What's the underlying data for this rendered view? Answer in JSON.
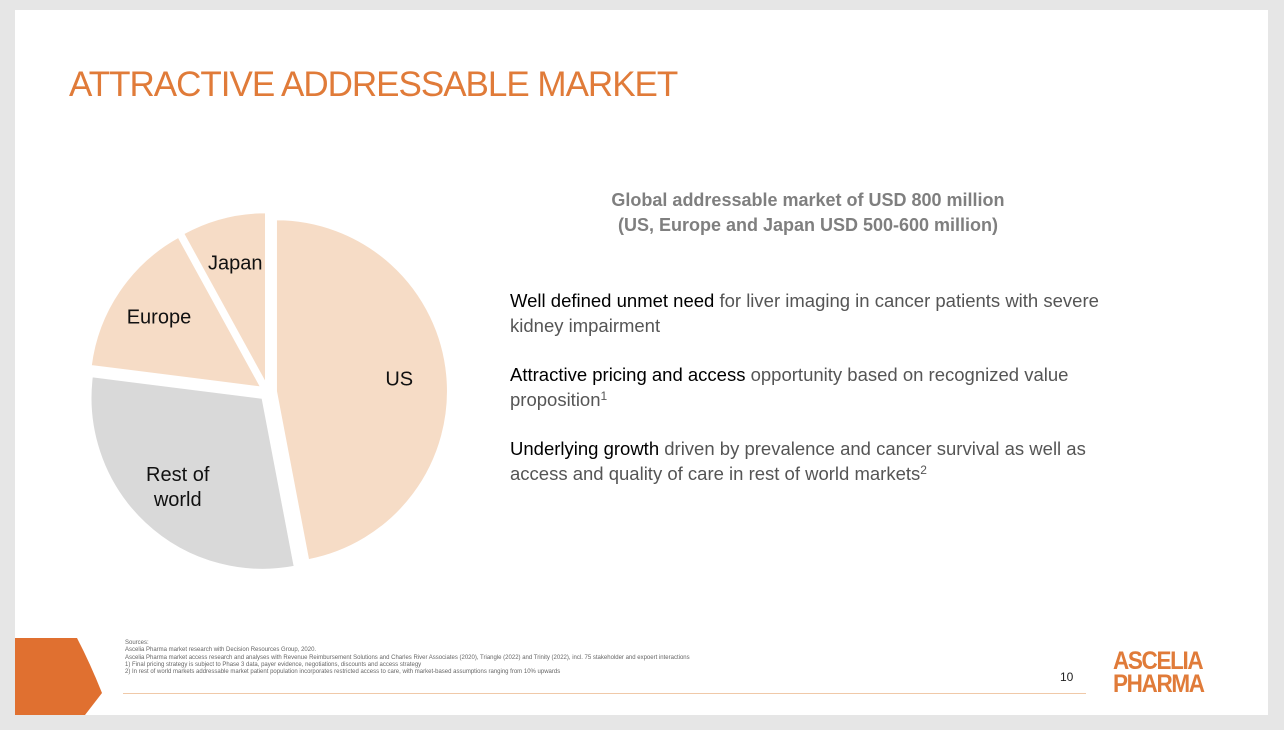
{
  "header": {
    "title": "ATTRACTIVE ADDRESSABLE MARKET"
  },
  "chart_data": {
    "type": "pie",
    "categories": [
      "US",
      "Rest of world",
      "Europe",
      "Japan"
    ],
    "values": [
      47,
      30,
      15,
      8
    ],
    "colors": [
      "#f6dcc6",
      "#d9d9d9",
      "#f6dcc6",
      "#f6dcc6"
    ]
  },
  "headline": [
    "Global addressable market of USD 800 million",
    "(US, Europe and Japan USD 500-600 million)"
  ],
  "bullets": [
    {
      "bold": "Well defined unmet need",
      "text": "for liver imaging in cancer patients with severe kidney impairment",
      "sup": null
    },
    {
      "bold": "Attractive pricing and access",
      "text": "opportunity based on recognized value proposition",
      "sup": "1"
    },
    {
      "bold": "Underlying growth",
      "text": "driven by prevalence and cancer survival as well as access and quality of care in rest of world markets",
      "sup": "2"
    }
  ],
  "footnotes": [
    "Sources:",
    "Ascelia Pharma market research with Decision Resources Group, 2020.",
    "Ascelia Pharma market access research and analyses with Revenue Reimbursement Solutions and Charles River Associates (2020), Triangle (2022) and Trinity (2022), incl. 75 stakeholder and expoert interactions",
    "1) Final pricing strategy is subject to Phase 3 data, payer evidence, negotiations, discounts and access strategy",
    "2) In rest of world markets addressable market patient population incorporates restricted access to care, with market-based assumptions ranging from 10% upwards"
  ],
  "page_number": "10",
  "logo": [
    "ASCELIA",
    "PHARMA"
  ]
}
